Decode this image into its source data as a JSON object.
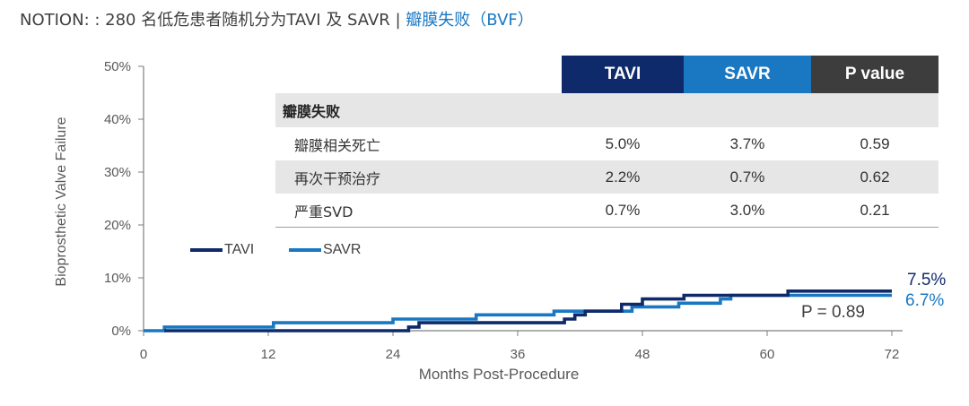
{
  "title": {
    "prefix": "NOTION: : 280 名低危患者随机分为TAVI 及 SAVR | ",
    "highlight": "瓣膜失败（BVF）"
  },
  "table": {
    "headers": [
      "TAVI",
      "SAVR",
      "P value"
    ],
    "section_label": "瓣膜失败",
    "rows": [
      {
        "label": "瓣膜相关死亡",
        "tavi": "5.0%",
        "savr": "3.7%",
        "p": "0.59"
      },
      {
        "label": "再次干预治疗",
        "tavi": "2.2%",
        "savr": "0.7%",
        "p": "0.62"
      },
      {
        "label": "严重SVD",
        "tavi": "0.7%",
        "savr": "3.0%",
        "p": "0.21"
      }
    ]
  },
  "legend": {
    "tavi": "TAVI",
    "savr": "SAVR"
  },
  "p_annotation": "P = 0.89",
  "end_labels": {
    "tavi": "7.5%",
    "savr": "6.7%"
  },
  "chart_data": {
    "type": "line",
    "step": true,
    "xlabel": "Months Post-Procedure",
    "ylabel": "Bioprosthetic Valve Failure",
    "xlim": [
      0,
      72
    ],
    "ylim": [
      0,
      50
    ],
    "x_ticks": [
      0,
      12,
      24,
      36,
      48,
      60,
      72
    ],
    "x_tick_labels": [
      "0",
      "12",
      "24",
      "36",
      "48",
      "60",
      "72"
    ],
    "y_ticks": [
      0,
      10,
      20,
      30,
      40,
      50
    ],
    "y_tick_labels": [
      "0%",
      "10%",
      "20%",
      "30%",
      "40%",
      "50%"
    ],
    "grid": false,
    "colors": {
      "tavi": "#0e2a6b",
      "savr": "#1a78c2",
      "axis": "#7f7f7f"
    },
    "series": [
      {
        "name": "TAVI",
        "points": [
          [
            2,
            0
          ],
          [
            25.5,
            0
          ],
          [
            25.5,
            0.7
          ],
          [
            26.5,
            0.7
          ],
          [
            26.5,
            1.5
          ],
          [
            40.5,
            1.5
          ],
          [
            40.5,
            2.2
          ],
          [
            41.5,
            2.2
          ],
          [
            41.5,
            3
          ],
          [
            42.5,
            3
          ],
          [
            42.5,
            3.7
          ],
          [
            46,
            3.7
          ],
          [
            46,
            5
          ],
          [
            48,
            5
          ],
          [
            48,
            6
          ],
          [
            52,
            6
          ],
          [
            52,
            6.7
          ],
          [
            62,
            6.7
          ],
          [
            62,
            7.5
          ],
          [
            72,
            7.5
          ]
        ]
      },
      {
        "name": "SAVR",
        "points": [
          [
            0,
            0
          ],
          [
            2,
            0
          ],
          [
            2,
            0.7
          ],
          [
            12.5,
            0.7
          ],
          [
            12.5,
            1.5
          ],
          [
            24,
            1.5
          ],
          [
            24,
            2.2
          ],
          [
            32,
            2.2
          ],
          [
            32,
            3
          ],
          [
            39.5,
            3
          ],
          [
            39.5,
            3.7
          ],
          [
            47,
            3.7
          ],
          [
            47,
            4.5
          ],
          [
            51.5,
            4.5
          ],
          [
            51.5,
            5.2
          ],
          [
            55.5,
            5.2
          ],
          [
            55.5,
            6
          ],
          [
            56.5,
            6
          ],
          [
            56.5,
            6.7
          ],
          [
            72,
            6.7
          ]
        ]
      }
    ]
  }
}
